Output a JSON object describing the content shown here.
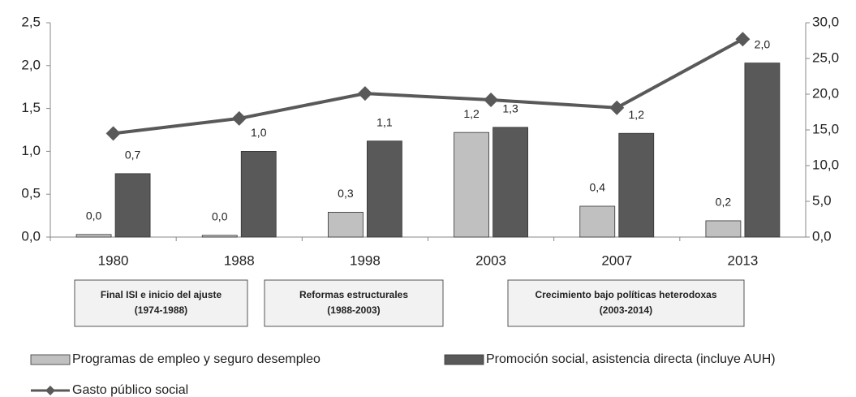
{
  "chart_data": {
    "type": "bar",
    "categories": [
      "1980",
      "1988",
      "1998",
      "2003",
      "2007",
      "2013"
    ],
    "series": [
      {
        "name": "Programas de empleo y seguro desempleo",
        "color": "#c0c0c0",
        "values": [
          0.03,
          0.02,
          0.29,
          1.22,
          0.36,
          0.19
        ],
        "value_labels": [
          "0,0",
          "0,0",
          "0,3",
          "1,2",
          "0,4",
          "0,2"
        ]
      },
      {
        "name": "Promoción social, asistencia directa (incluye AUH)",
        "color": "#595959",
        "values": [
          0.74,
          1.0,
          1.12,
          1.28,
          1.21,
          2.03
        ],
        "value_labels": [
          "0,7",
          "1,0",
          "1,1",
          "1,3",
          "1,2",
          "2,0"
        ]
      },
      {
        "name": "Gasto público social",
        "color": "#595959",
        "type": "line",
        "axis": "y2",
        "values": [
          14.5,
          16.6,
          20.1,
          19.2,
          18.1,
          27.7
        ]
      }
    ],
    "ylim": [
      0,
      2.5
    ],
    "yticks": [
      {
        "value": 0,
        "label": "0,0"
      },
      {
        "value": 0.5,
        "label": "0,5"
      },
      {
        "value": 1,
        "label": "1,0"
      },
      {
        "value": 1.5,
        "label": "1,5"
      },
      {
        "value": 2,
        "label": "2,0"
      },
      {
        "value": 2.5,
        "label": "2,5"
      }
    ],
    "y2lim": [
      0,
      30
    ],
    "y2ticks": [
      {
        "value": 0,
        "label": "0,0"
      },
      {
        "value": 5,
        "label": "5,0"
      },
      {
        "value": 10,
        "label": "10,0"
      },
      {
        "value": 15,
        "label": "15,0"
      },
      {
        "value": 20,
        "label": "20,0"
      },
      {
        "value": 25,
        "label": "25,0"
      },
      {
        "value": 30,
        "label": "30,0"
      }
    ],
    "grid": false,
    "periods": [
      {
        "label": "Final ISI e inicio del ajuste",
        "range": "(1974-1988)"
      },
      {
        "label": "Reformas estructurales",
        "range": "(1988-2003)"
      },
      {
        "label": "Crecimiento bajo políticas heterodoxas",
        "range": "(2003-2014)"
      }
    ]
  }
}
